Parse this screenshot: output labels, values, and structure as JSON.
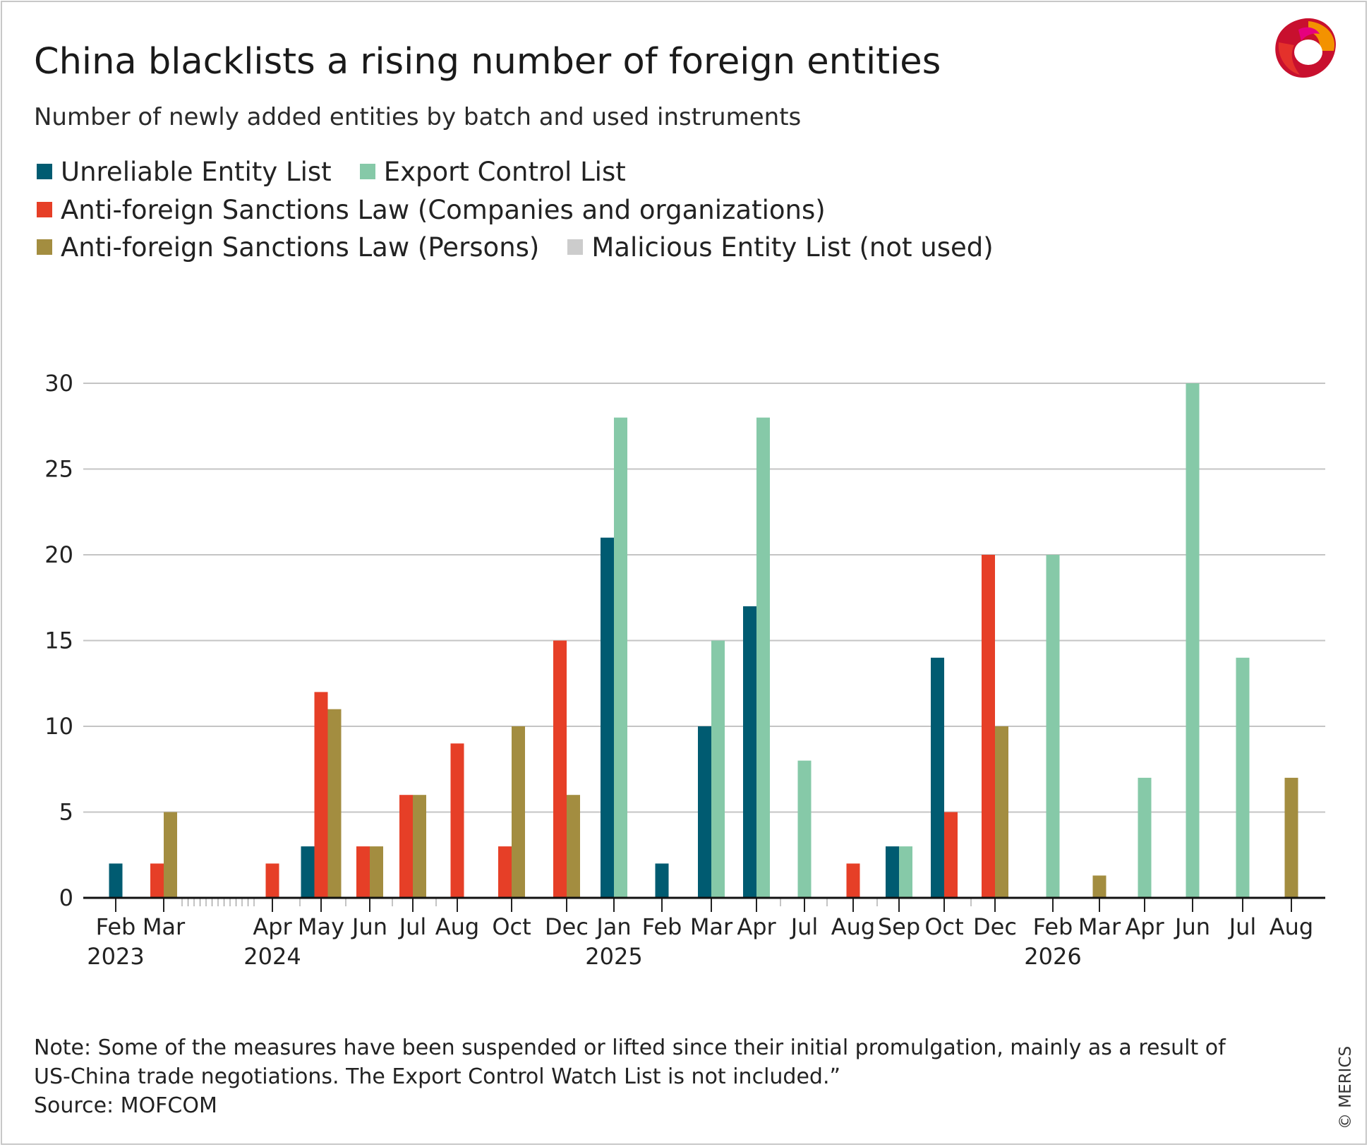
{
  "title": "China blacklists a rising number of foreign entities",
  "subtitle": "Number of newly added entities by batch and used instruments",
  "legend": {
    "rows": [
      [
        {
          "label": "Unreliable Entity List",
          "color": "#005b71"
        },
        {
          "label": "Export Control List",
          "color": "#86c9a8"
        }
      ],
      [
        {
          "label": "Anti-foreign Sanctions Law (Companies and organizations)",
          "color": "#e63f27"
        }
      ],
      [
        {
          "label": "Anti-foreign Sanctions Law (Persons)",
          "color": "#a38d40"
        },
        {
          "label": "Malicious Entity List (not used)",
          "color": "#cccccc"
        }
      ]
    ]
  },
  "notes": {
    "line1": "Note: Some of the measures have been suspended or lifted since their initial promulgation, mainly as a result of",
    "line2": "US-China trade negotiations. The Export Control Watch List is not included.”",
    "source": "Source: MOFCOM"
  },
  "copyright": "© MERICS",
  "chart_data": {
    "type": "bar",
    "ylim": [
      0,
      30
    ],
    "yticks": [
      0,
      5,
      10,
      15,
      20,
      25,
      30
    ],
    "grid": true,
    "legend_position": "top-left",
    "series": [
      {
        "name": "Unreliable Entity List",
        "color": "#005b71"
      },
      {
        "name": "Export Control List",
        "color": "#86c9a8"
      },
      {
        "name": "Anti-foreign Sanctions Law (Companies and organizations)",
        "color": "#e63f27"
      },
      {
        "name": "Anti-foreign Sanctions Law (Persons)",
        "color": "#a38d40"
      },
      {
        "name": "Malicious Entity List (not used)",
        "color": "#cccccc"
      }
    ],
    "categories": [
      {
        "month": "Feb",
        "year": "2023",
        "bars": [
          {
            "series": 0,
            "value": 2
          }
        ]
      },
      {
        "month": "Mar",
        "bars": [
          {
            "series": 2,
            "value": 2
          },
          {
            "series": 3,
            "value": 5
          }
        ]
      },
      {
        "month": "Apr",
        "year": "2024",
        "bars": [
          {
            "series": 2,
            "value": 2
          }
        ]
      },
      {
        "month": "May",
        "bars": [
          {
            "series": 0,
            "value": 3
          },
          {
            "series": 2,
            "value": 12
          },
          {
            "series": 3,
            "value": 11
          }
        ]
      },
      {
        "month": "Jun",
        "bars": [
          {
            "series": 2,
            "value": 3
          },
          {
            "series": 3,
            "value": 3
          }
        ]
      },
      {
        "month": "Jul",
        "bars": [
          {
            "series": 2,
            "value": 6
          },
          {
            "series": 3,
            "value": 6
          }
        ]
      },
      {
        "month": "Aug",
        "bars": [
          {
            "series": 2,
            "value": 9
          }
        ]
      },
      {
        "month": "Oct",
        "bars": [
          {
            "series": 2,
            "value": 3
          },
          {
            "series": 3,
            "value": 10
          }
        ]
      },
      {
        "month": "Dec",
        "bars": [
          {
            "series": 2,
            "value": 15
          },
          {
            "series": 3,
            "value": 6
          }
        ]
      },
      {
        "month": "Jan",
        "year": "2025",
        "bars": [
          {
            "series": 0,
            "value": 21
          },
          {
            "series": 1,
            "value": 28
          }
        ]
      },
      {
        "month": "Feb",
        "bars": [
          {
            "series": 0,
            "value": 2
          }
        ]
      },
      {
        "month": "Mar",
        "bars": [
          {
            "series": 0,
            "value": 10
          },
          {
            "series": 1,
            "value": 15
          }
        ]
      },
      {
        "month": "Apr",
        "bars": [
          {
            "series": 0,
            "value": 17
          },
          {
            "series": 1,
            "value": 28
          }
        ]
      },
      {
        "month": "Jul",
        "bars": [
          {
            "series": 1,
            "value": 8
          }
        ]
      },
      {
        "month": "Aug",
        "bars": [
          {
            "series": 2,
            "value": 2
          }
        ]
      },
      {
        "month": "Sep",
        "bars": [
          {
            "series": 0,
            "value": 3
          },
          {
            "series": 1,
            "value": 3
          }
        ]
      },
      {
        "month": "Oct",
        "bars": [
          {
            "series": 0,
            "value": 14
          },
          {
            "series": 2,
            "value": 5
          }
        ]
      },
      {
        "month": "Dec",
        "bars": [
          {
            "series": 2,
            "value": 20
          },
          {
            "series": 3,
            "value": 10
          }
        ]
      },
      {
        "month": "Feb",
        "year": "2026",
        "bars": [
          {
            "series": 1,
            "value": 20
          }
        ]
      },
      {
        "month": "Mar",
        "bars": [
          {
            "series": 3,
            "value": 1.3
          }
        ]
      },
      {
        "month": "Apr",
        "bars": [
          {
            "series": 1,
            "value": 7
          }
        ]
      },
      {
        "month": "Jun",
        "bars": [
          {
            "series": 1,
            "value": 30
          }
        ]
      },
      {
        "month": "Jul",
        "bars": [
          {
            "series": 1,
            "value": 14
          }
        ]
      },
      {
        "month": "Aug",
        "bars": [
          {
            "series": 3,
            "value": 7
          }
        ]
      }
    ]
  }
}
